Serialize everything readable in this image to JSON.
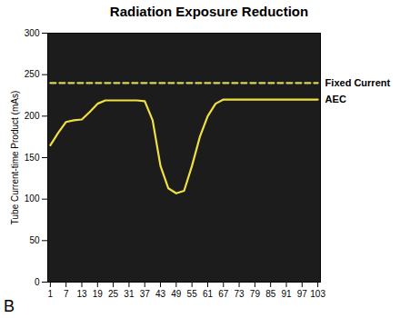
{
  "chart_data": {
    "type": "line",
    "title": "Radiation Exposure Reduction",
    "y_label": "Tube Current-time Product (mAs)",
    "annotations": [
      "B"
    ],
    "x": [
      1,
      4,
      7,
      10,
      13,
      16,
      19,
      22,
      25,
      28,
      31,
      34,
      37,
      40,
      43,
      46,
      49,
      52,
      55,
      58,
      61,
      64,
      67,
      70,
      73,
      76,
      79,
      82,
      85,
      88,
      91,
      94,
      97,
      100,
      103
    ],
    "series": [
      {
        "name": "Fixed Current",
        "color": "#d9d45a",
        "line_style": "dashed",
        "values": [
          240,
          240,
          240,
          240,
          240,
          240,
          240,
          240,
          240,
          240,
          240,
          240,
          240,
          240,
          240,
          240,
          240,
          240,
          240,
          240,
          240,
          240,
          240,
          240,
          240,
          240,
          240,
          240,
          240,
          240,
          240,
          240,
          240,
          240,
          240
        ]
      },
      {
        "name": "AEC",
        "color": "#f0e040",
        "line_style": "solid",
        "values": [
          165,
          180,
          193,
          195,
          196,
          205,
          215,
          219,
          219,
          219,
          219,
          219,
          218,
          195,
          140,
          113,
          107,
          110,
          140,
          175,
          200,
          215,
          220,
          220,
          220,
          220,
          220,
          220,
          220,
          220,
          220,
          220,
          220,
          220,
          220
        ]
      }
    ],
    "xlim": [
      0,
      104
    ],
    "xticks": [
      1,
      7,
      13,
      19,
      25,
      31,
      37,
      43,
      49,
      55,
      61,
      67,
      73,
      79,
      85,
      91,
      97,
      103
    ],
    "ylim": [
      0,
      300
    ],
    "yticks": [
      0,
      50,
      100,
      150,
      200,
      250,
      300
    ],
    "grid": false
  }
}
